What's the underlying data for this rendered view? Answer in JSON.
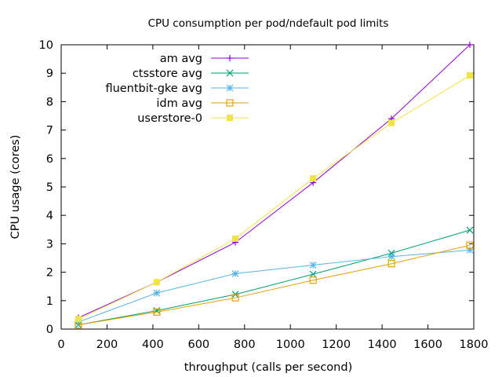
{
  "chart_data": {
    "type": "line",
    "title": "CPU consumption per pod/ndefault pod limits",
    "xlabel": "throughput (calls per second)",
    "ylabel": "CPU usage (cores)",
    "xlim": [
      0,
      1800
    ],
    "ylim": [
      0,
      10
    ],
    "xticks": [
      0,
      200,
      400,
      600,
      800,
      1000,
      1200,
      1400,
      1600,
      1800
    ],
    "yticks": [
      0,
      1,
      2,
      3,
      4,
      5,
      6,
      7,
      8,
      9,
      10
    ],
    "grid": false,
    "legend_position": "top-left",
    "x": [
      75,
      417,
      760,
      1099,
      1441,
      1783
    ],
    "series": [
      {
        "name": "am avg",
        "color": "#9400d3",
        "marker": "plus",
        "values": [
          0.4,
          1.65,
          3.05,
          5.15,
          7.4,
          10.0
        ]
      },
      {
        "name": "ctsstore avg",
        "color": "#009e73",
        "marker": "cross",
        "values": [
          0.15,
          0.65,
          1.22,
          1.93,
          2.67,
          3.48
        ]
      },
      {
        "name": "fluentbit-gke avg",
        "color": "#56b4e9",
        "marker": "star",
        "values": [
          0.25,
          1.27,
          1.95,
          2.25,
          2.55,
          2.78
        ]
      },
      {
        "name": "idm avg",
        "color": "#e69f00",
        "marker": "open-square",
        "values": [
          0.15,
          0.6,
          1.1,
          1.72,
          2.3,
          2.95
        ]
      },
      {
        "name": "userstore-0",
        "color": "#f0e442",
        "marker": "filled-square",
        "values": [
          0.35,
          1.65,
          3.18,
          5.3,
          7.25,
          8.92
        ]
      }
    ]
  }
}
